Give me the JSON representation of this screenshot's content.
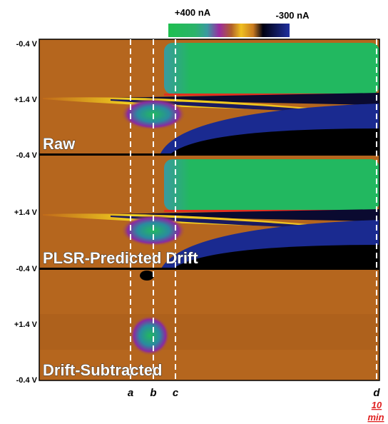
{
  "colorbar": {
    "max_label": "+400 nA",
    "min_label": "-300 nA"
  },
  "y_labels": [
    "-0.4 V",
    "+1.4 V",
    "-0.4 V",
    "+1.4 V",
    "-0.4 V",
    "+1.4 V",
    "-0.4 V"
  ],
  "panels": [
    "Raw",
    "PLSR-Predicted Drift",
    "Drift-Subtracted"
  ],
  "markers": [
    "a",
    "b",
    "c",
    "d"
  ],
  "time_label": {
    "value": "10",
    "unit": "min"
  }
}
